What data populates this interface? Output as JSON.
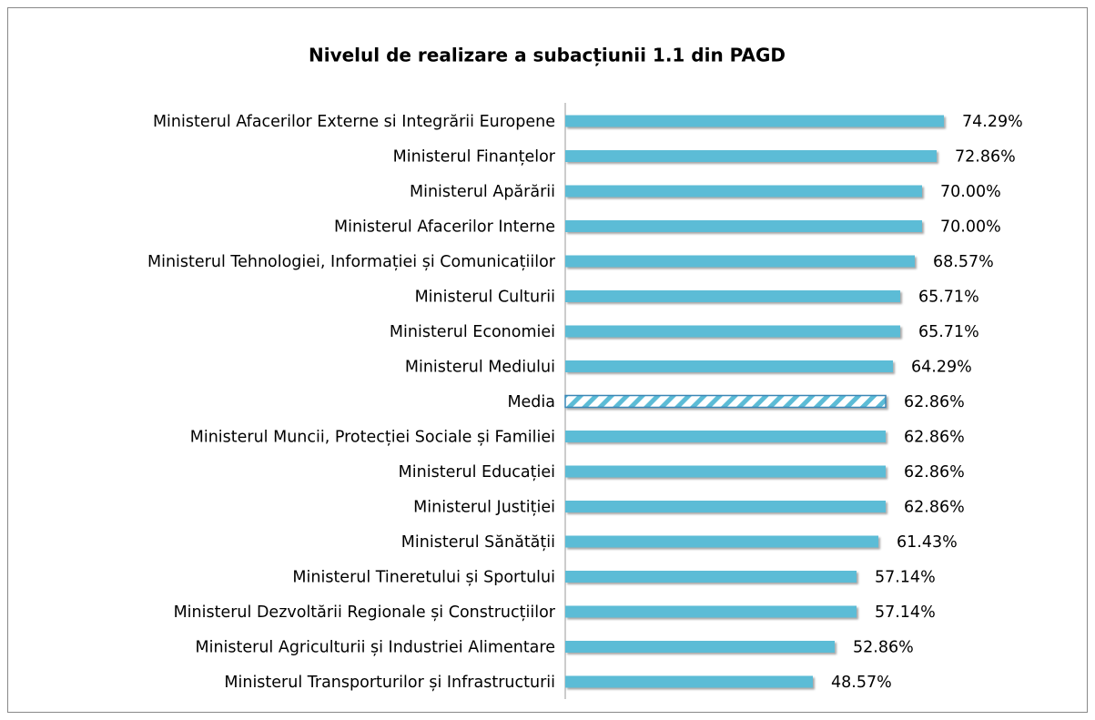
{
  "chart_data": {
    "type": "barh",
    "title": "Nivelul de realizare a subacțiunii 1.1 din PAGD",
    "categories": [
      "Ministerul Afacerilor Externe si Integrării Europene",
      "Ministerul Finanțelor",
      "Ministerul Apărării",
      "Ministerul Afacerilor Interne",
      "Ministerul Tehnologiei, Informației și Comunicațiilor",
      "Ministerul Culturii",
      "Ministerul Economiei",
      "Ministerul Mediului",
      "Media",
      "Ministerul Muncii, Protecției Sociale și Familiei",
      "Ministerul Educației",
      "Ministerul Justiției",
      "Ministerul Sănătății",
      "Ministerul Tineretului și Sportului",
      "Ministerul Dezvoltării Regionale și Construcțiilor",
      "Ministerul Agriculturii și Industriei Alimentare",
      "Ministerul Transporturilor și Infrastructurii"
    ],
    "values": [
      74.29,
      72.86,
      70.0,
      70.0,
      68.57,
      65.71,
      65.71,
      64.29,
      62.86,
      62.86,
      62.86,
      62.86,
      61.43,
      57.14,
      57.14,
      52.86,
      48.57
    ],
    "value_labels": [
      "74.29%",
      "72.86%",
      "70.00%",
      "70.00%",
      "68.57%",
      "65.71%",
      "65.71%",
      "64.29%",
      "62.86%",
      "62.86%",
      "62.86%",
      "62.86%",
      "61.43%",
      "57.14%",
      "57.14%",
      "52.86%",
      "48.57%"
    ],
    "hatched": [
      false,
      false,
      false,
      false,
      false,
      false,
      false,
      false,
      true,
      false,
      false,
      false,
      false,
      false,
      false,
      false,
      false
    ],
    "color": "#5bbcd6",
    "xlim": [
      0,
      100
    ]
  }
}
